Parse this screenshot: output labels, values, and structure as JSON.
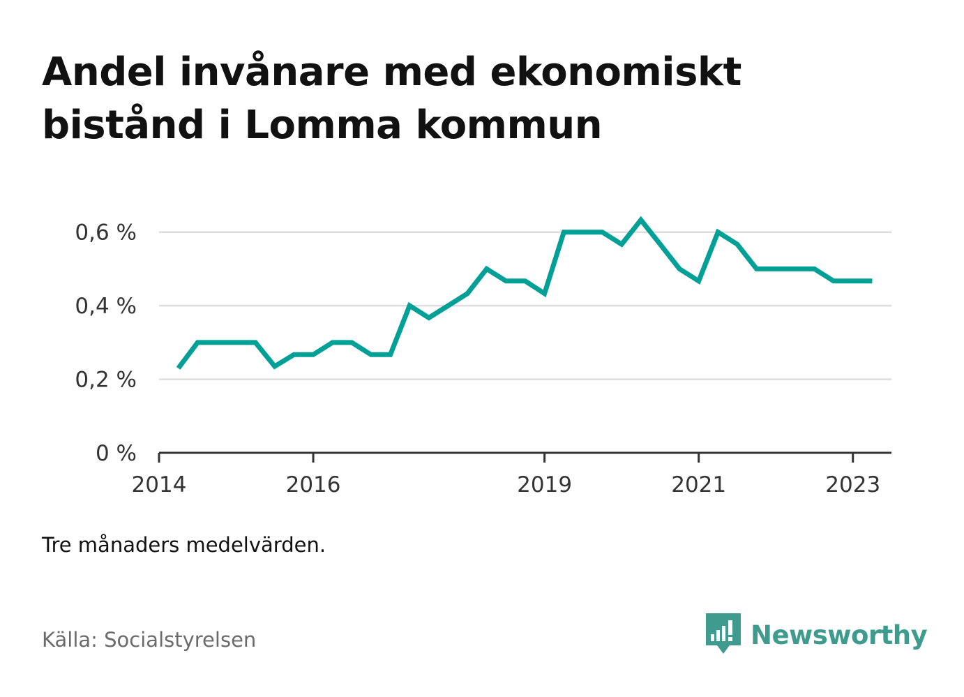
{
  "title": "Andel invånare med ekonomiskt bistånd i Lomma kommun",
  "note": "Tre månaders medelvärden.",
  "source": "Källa: Socialstyrelsen",
  "brand": {
    "name": "Newsworthy",
    "icon": "newsworthy-chart-bubble-icon"
  },
  "colors": {
    "line": "#00a096",
    "grid": "#dddddd",
    "axis": "#333333",
    "brand": "#3f9b8d"
  },
  "chart_data": {
    "type": "line",
    "title": "Andel invånare med ekonomiskt bistånd i Lomma kommun",
    "xlabel": "",
    "ylabel": "",
    "ylim": [
      0,
      0.7
    ],
    "xlim": [
      "2014-01",
      "2023-07"
    ],
    "yticks": [
      {
        "value": 0,
        "label": "0 %"
      },
      {
        "value": 0.2,
        "label": "0,2 %"
      },
      {
        "value": 0.4,
        "label": "0,4 %"
      },
      {
        "value": 0.6,
        "label": "0,6 %"
      }
    ],
    "xticks": [
      {
        "value": "2014-01",
        "label": "2014"
      },
      {
        "value": "2016-01",
        "label": "2016"
      },
      {
        "value": "2019-01",
        "label": "2019"
      },
      {
        "value": "2021-01",
        "label": "2021"
      },
      {
        "value": "2023-01",
        "label": "2023"
      }
    ],
    "grid": true,
    "series": [
      {
        "x": [
          "2014-04",
          "2014-07",
          "2014-10",
          "2015-01",
          "2015-04",
          "2015-07",
          "2015-10",
          "2016-01",
          "2016-04",
          "2016-07",
          "2016-10",
          "2017-01",
          "2017-04",
          "2017-07",
          "2017-10",
          "2018-01",
          "2018-04",
          "2018-07",
          "2018-10",
          "2019-01",
          "2019-04",
          "2019-07",
          "2019-10",
          "2020-01",
          "2020-04",
          "2020-07",
          "2020-10",
          "2021-01",
          "2021-04",
          "2021-07",
          "2021-10",
          "2022-01",
          "2022-04",
          "2022-07",
          "2022-10",
          "2023-01",
          "2023-04"
        ],
        "values": [
          0.23,
          0.3,
          0.3,
          0.3,
          0.3,
          0.235,
          0.267,
          0.267,
          0.3,
          0.3,
          0.267,
          0.267,
          0.4,
          0.367,
          0.4,
          0.433,
          0.5,
          0.467,
          0.467,
          0.433,
          0.6,
          0.6,
          0.6,
          0.567,
          0.633,
          0.567,
          0.5,
          0.467,
          0.6,
          0.567,
          0.5,
          0.5,
          0.5,
          0.5,
          0.467,
          0.467,
          0.467
        ]
      }
    ]
  }
}
